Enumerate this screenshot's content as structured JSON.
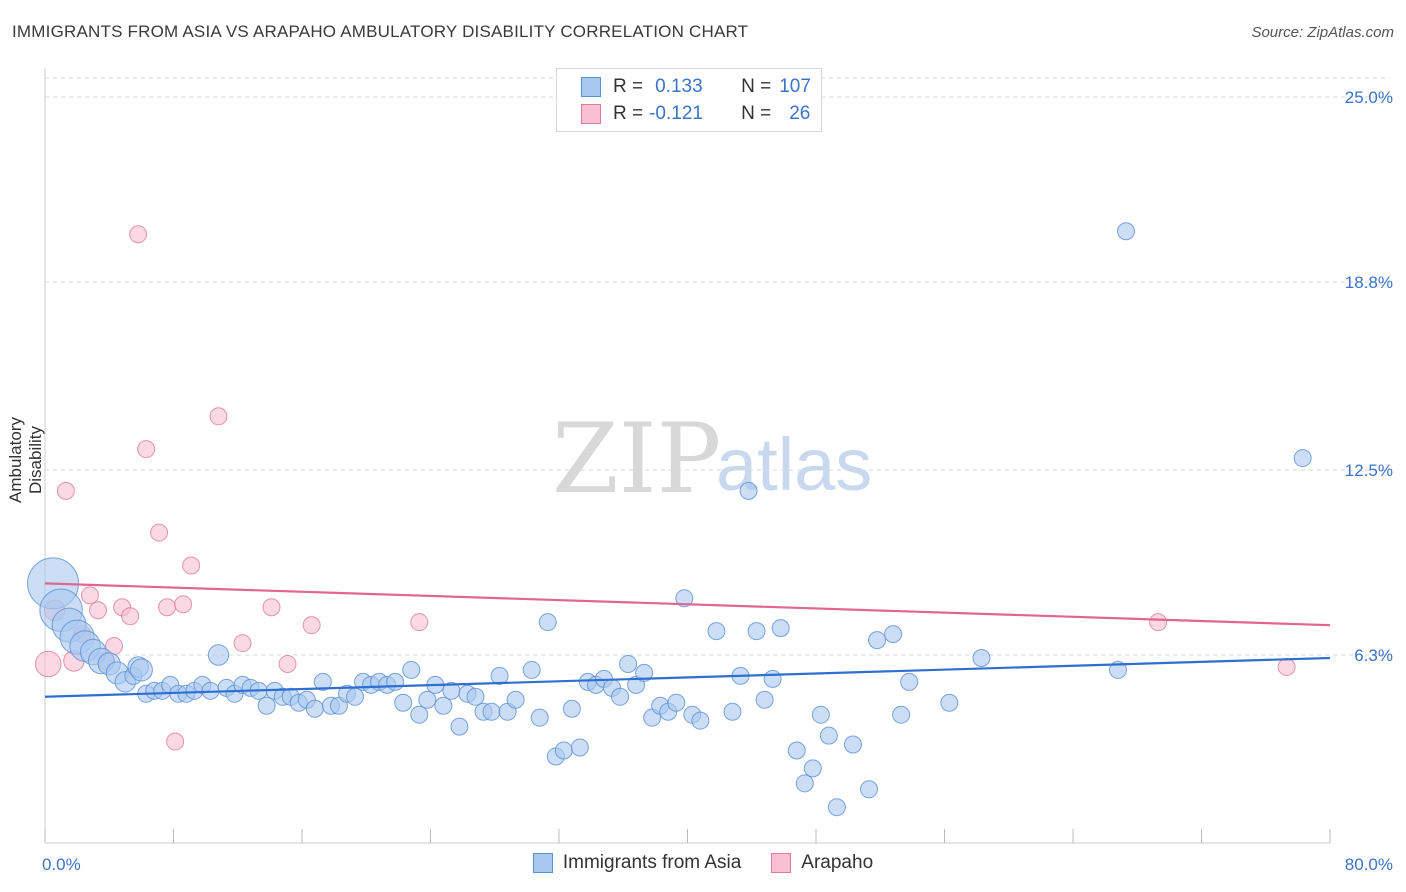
{
  "header": {
    "title": "IMMIGRANTS FROM ASIA VS ARAPAHO AMBULATORY DISABILITY CORRELATION CHART",
    "source": "Source: ZipAtlas.com"
  },
  "legend_top": {
    "rows": [
      {
        "r_label": "R =",
        "r_value": "0.133",
        "n_label": "N =",
        "n_value": "107",
        "color": "#a8c8f0",
        "border": "#5b8fd6"
      },
      {
        "r_label": "R =",
        "r_value": "-0.121",
        "n_label": "N =",
        "n_value": "26",
        "color": "#f8c0d2",
        "border": "#e07a9b"
      }
    ]
  },
  "watermark": {
    "zip": "ZIP",
    "atlas": "atlas"
  },
  "colors": {
    "blue_fill": "#a8c8f0",
    "blue_stroke": "#5b8fd6",
    "blue_line": "#2f6fd0",
    "pink_fill": "#f8c0d2",
    "pink_stroke": "#e07a9b",
    "pink_line": "#e06690",
    "tick_text": "#3a73c9",
    "grid": "#d9d9d9"
  },
  "chart_data": {
    "type": "scatter",
    "ylabel": "Ambulatory Disability",
    "xlim": [
      0,
      80
    ],
    "ylim": [
      0,
      25
    ],
    "x_tick_labels": [
      "0.0%",
      "80.0%"
    ],
    "y_ticks": [
      {
        "value": 6.3,
        "label": "6.3%"
      },
      {
        "value": 12.5,
        "label": "12.5%"
      },
      {
        "value": 18.8,
        "label": "18.8%"
      },
      {
        "value": 25.0,
        "label": "25.0%"
      }
    ],
    "legend_position": "bottom",
    "series": [
      {
        "name": "Immigrants from Asia",
        "trend": [
          [
            0,
            4.9
          ],
          [
            80,
            6.2
          ]
        ],
        "points": [
          [
            0.5,
            8.7,
            3
          ],
          [
            1,
            7.8,
            2.5
          ],
          [
            1.5,
            7.3,
            2
          ],
          [
            2,
            6.9,
            2
          ],
          [
            2.5,
            6.6,
            1.8
          ],
          [
            3,
            6.4,
            1.5
          ],
          [
            3.5,
            6.1,
            1.5
          ],
          [
            4,
            6.0,
            1.3
          ],
          [
            4.5,
            5.7,
            1.3
          ],
          [
            5,
            5.4,
            1.2
          ],
          [
            5.5,
            5.6,
            1
          ],
          [
            5.8,
            5.9,
            1.2
          ],
          [
            6,
            5.8,
            1.3
          ],
          [
            6.3,
            5.0,
            1
          ],
          [
            6.8,
            5.1,
            1
          ],
          [
            7.3,
            5.1,
            1
          ],
          [
            7.8,
            5.3,
            1
          ],
          [
            8.3,
            5.0,
            1
          ],
          [
            8.8,
            5.0,
            1
          ],
          [
            9.3,
            5.1,
            1
          ],
          [
            9.8,
            5.3,
            1
          ],
          [
            10.3,
            5.1,
            1
          ],
          [
            10.8,
            6.3,
            1.2
          ],
          [
            11.3,
            5.2,
            1
          ],
          [
            11.8,
            5.0,
            1
          ],
          [
            12.3,
            5.3,
            1
          ],
          [
            12.8,
            5.2,
            1
          ],
          [
            13.3,
            5.1,
            1
          ],
          [
            13.8,
            4.6,
            1
          ],
          [
            14.3,
            5.1,
            1
          ],
          [
            14.8,
            4.9,
            1
          ],
          [
            15.3,
            4.9,
            1
          ],
          [
            15.8,
            4.7,
            1
          ],
          [
            16.3,
            4.8,
            1
          ],
          [
            16.8,
            4.5,
            1
          ],
          [
            17.3,
            5.4,
            1
          ],
          [
            17.8,
            4.6,
            1
          ],
          [
            18.3,
            4.6,
            1
          ],
          [
            18.8,
            5.0,
            1
          ],
          [
            19.3,
            4.9,
            1
          ],
          [
            19.8,
            5.4,
            1
          ],
          [
            20.3,
            5.3,
            1
          ],
          [
            20.8,
            5.4,
            1
          ],
          [
            21.3,
            5.3,
            1
          ],
          [
            21.8,
            5.4,
            1
          ],
          [
            22.3,
            4.7,
            1
          ],
          [
            22.8,
            5.8,
            1
          ],
          [
            23.3,
            4.3,
            1
          ],
          [
            23.8,
            4.8,
            1
          ],
          [
            24.3,
            5.3,
            1
          ],
          [
            24.8,
            4.6,
            1
          ],
          [
            25.3,
            5.1,
            1
          ],
          [
            25.8,
            3.9,
            1
          ],
          [
            26.3,
            5.0,
            1
          ],
          [
            26.8,
            4.9,
            1
          ],
          [
            27.3,
            4.4,
            1
          ],
          [
            27.8,
            4.4,
            1
          ],
          [
            28.3,
            5.6,
            1
          ],
          [
            28.8,
            4.4,
            1
          ],
          [
            29.3,
            4.8,
            1
          ],
          [
            30.3,
            5.8,
            1
          ],
          [
            30.8,
            4.2,
            1
          ],
          [
            31.3,
            7.4,
            1
          ],
          [
            31.8,
            2.9,
            1
          ],
          [
            32.3,
            3.1,
            1
          ],
          [
            32.8,
            4.5,
            1
          ],
          [
            33.3,
            3.2,
            1
          ],
          [
            33.8,
            5.4,
            1
          ],
          [
            34.3,
            5.3,
            1
          ],
          [
            34.8,
            5.5,
            1
          ],
          [
            35.3,
            5.2,
            1
          ],
          [
            35.8,
            4.9,
            1
          ],
          [
            36.3,
            6.0,
            1
          ],
          [
            36.8,
            5.3,
            1
          ],
          [
            37.3,
            5.7,
            1
          ],
          [
            37.8,
            4.2,
            1
          ],
          [
            38.3,
            4.6,
            1
          ],
          [
            38.8,
            4.4,
            1
          ],
          [
            39.3,
            4.7,
            1
          ],
          [
            39.8,
            8.2,
            1
          ],
          [
            40.3,
            4.3,
            1
          ],
          [
            40.8,
            4.1,
            1
          ],
          [
            41.8,
            7.1,
            1
          ],
          [
            42.8,
            4.4,
            1
          ],
          [
            43.3,
            5.6,
            1
          ],
          [
            43.8,
            11.8,
            1
          ],
          [
            44.3,
            7.1,
            1
          ],
          [
            44.8,
            4.8,
            1
          ],
          [
            45.3,
            5.5,
            1
          ],
          [
            45.8,
            7.2,
            1
          ],
          [
            46.8,
            3.1,
            1
          ],
          [
            47.3,
            2.0,
            1
          ],
          [
            47.8,
            2.5,
            1
          ],
          [
            48.3,
            4.3,
            1
          ],
          [
            48.8,
            3.6,
            1
          ],
          [
            49.3,
            1.2,
            1
          ],
          [
            50.3,
            3.3,
            1
          ],
          [
            51.3,
            1.8,
            1
          ],
          [
            51.8,
            6.8,
            1
          ],
          [
            52.8,
            7.0,
            1
          ],
          [
            53.3,
            4.3,
            1
          ],
          [
            53.8,
            5.4,
            1
          ],
          [
            56.3,
            4.7,
            1
          ],
          [
            58.3,
            6.2,
            1
          ],
          [
            66.8,
            5.8,
            1
          ],
          [
            67.3,
            20.5,
            1
          ],
          [
            78.3,
            12.9,
            1
          ]
        ]
      },
      {
        "name": "Arapaho",
        "trend": [
          [
            0,
            8.7
          ],
          [
            80,
            7.3
          ]
        ],
        "points": [
          [
            0.2,
            6.0,
            1.5
          ],
          [
            0.6,
            7.8,
            1.2
          ],
          [
            1.3,
            11.8,
            1
          ],
          [
            1.8,
            6.1,
            1.2
          ],
          [
            2.3,
            7.0,
            1
          ],
          [
            2.8,
            8.3,
            1
          ],
          [
            3.3,
            7.8,
            1
          ],
          [
            3.8,
            6.1,
            1
          ],
          [
            4.3,
            6.6,
            1
          ],
          [
            4.8,
            7.9,
            1
          ],
          [
            5.3,
            7.6,
            1
          ],
          [
            5.8,
            20.4,
            1
          ],
          [
            6.3,
            13.2,
            1
          ],
          [
            7.1,
            10.4,
            1
          ],
          [
            7.6,
            7.9,
            1
          ],
          [
            8.1,
            3.4,
            1
          ],
          [
            8.6,
            8.0,
            1
          ],
          [
            9.1,
            9.3,
            1
          ],
          [
            10.8,
            14.3,
            1
          ],
          [
            12.3,
            6.7,
            1
          ],
          [
            14.1,
            7.9,
            1
          ],
          [
            15.1,
            6.0,
            1
          ],
          [
            16.6,
            7.3,
            1
          ],
          [
            23.3,
            7.4,
            1
          ],
          [
            69.3,
            7.4,
            1
          ],
          [
            77.3,
            5.9,
            1
          ]
        ]
      }
    ]
  }
}
